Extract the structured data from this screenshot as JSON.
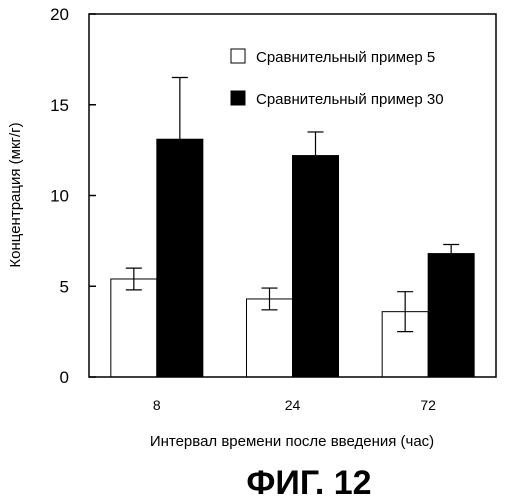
{
  "chart_data": {
    "type": "bar",
    "categories": [
      "8",
      "24",
      "72"
    ],
    "series": [
      {
        "name": "Сравнительный пример 5",
        "values": [
          5.4,
          4.3,
          3.6
        ],
        "errors": [
          0.6,
          0.6,
          1.1
        ],
        "fill": "#ffffff"
      },
      {
        "name": "Сравнительный пример 30",
        "values": [
          13.1,
          12.2,
          6.8
        ],
        "errors": [
          3.4,
          1.3,
          0.5
        ],
        "fill": "#000000"
      }
    ],
    "ylim": [
      0,
      20
    ],
    "yticks": [
      "0",
      "5",
      "10",
      "15",
      "20"
    ],
    "ylabel": "Концентрация (мкг/г)",
    "xlabel": "Интервал времени после введения (час)",
    "legend_position": "top-right",
    "grid": false
  },
  "caption": "ФИГ. 12"
}
